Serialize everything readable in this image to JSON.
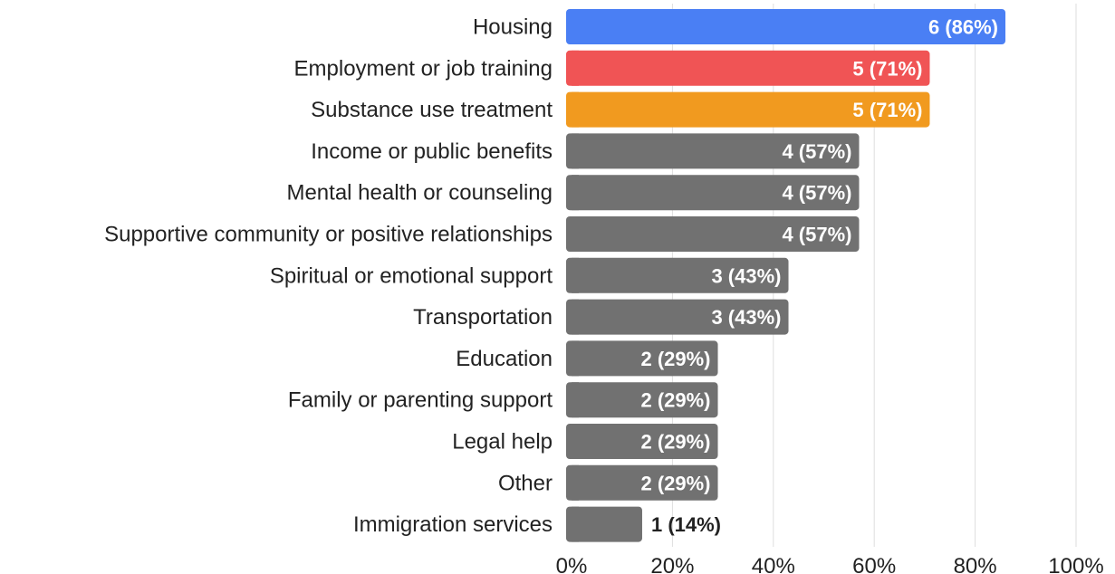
{
  "chart_data": {
    "type": "bar",
    "orientation": "horizontal",
    "title": "",
    "xlabel": "",
    "ylabel": "",
    "xlim": [
      0,
      100
    ],
    "x_ticks": [
      0,
      20,
      40,
      60,
      80,
      100
    ],
    "x_tick_labels": [
      "0%",
      "20%",
      "40%",
      "60%",
      "80%",
      "100%"
    ],
    "grid": "vertical",
    "legend": "none",
    "categories": [
      "Housing",
      "Employment or job training",
      "Substance use treatment",
      "Income or public benefits",
      "Mental health or counseling",
      "Supportive community or positive relationships",
      "Spiritual or emotional support",
      "Transportation",
      "Education",
      "Family or parenting support",
      "Legal help",
      "Other",
      "Immigration services"
    ],
    "counts": [
      6,
      5,
      5,
      4,
      4,
      4,
      3,
      3,
      2,
      2,
      2,
      2,
      1
    ],
    "values": [
      86,
      71,
      71,
      57,
      57,
      57,
      43,
      43,
      29,
      29,
      29,
      29,
      14
    ],
    "data_labels": [
      "6 (86%)",
      "5 (71%)",
      "5 (71%)",
      "4 (57%)",
      "4 (57%)",
      "4 (57%)",
      "3 (43%)",
      "3 (43%)",
      "2 (29%)",
      "2 (29%)",
      "2 (29%)",
      "2 (29%)",
      "1 (14%)"
    ],
    "colors": [
      "#4a7ff4",
      "#f05455",
      "#f19a1f",
      "#717171",
      "#717171",
      "#717171",
      "#717171",
      "#717171",
      "#717171",
      "#717171",
      "#717171",
      "#717171",
      "#717171"
    ],
    "label_colors": {
      "inside": "#ffffff",
      "outside": "#222222"
    },
    "gridline_color": "#dedede"
  }
}
